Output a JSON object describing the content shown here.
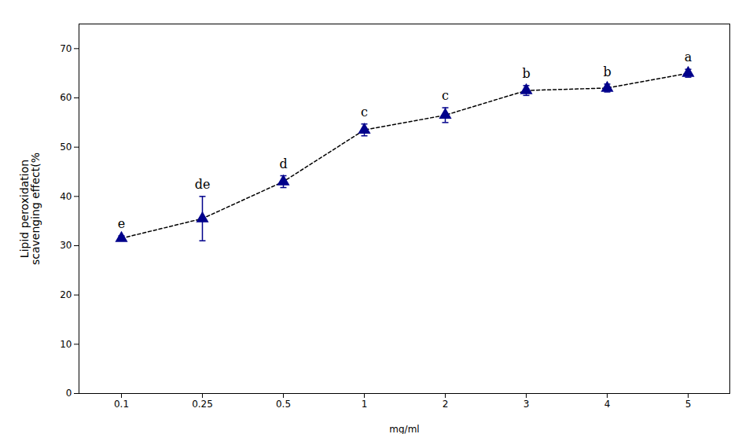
{
  "chart_data": {
    "type": "line",
    "xlabel": "mg/ml",
    "ylabel": "Lipid peroxidation\nscavenging effect(%",
    "categories": [
      "0.1",
      "0.25",
      "0.5",
      "1",
      "2",
      "3",
      "4",
      "5"
    ],
    "values": [
      31.5,
      35.5,
      43.0,
      53.5,
      56.5,
      61.5,
      62.0,
      65.0
    ],
    "errors": [
      0.5,
      4.5,
      1.2,
      1.2,
      1.5,
      1.0,
      0.8,
      0.8
    ],
    "annotations": [
      {
        "category": "0.1",
        "text": "e"
      },
      {
        "category": "0.25",
        "text": "de"
      },
      {
        "category": "0.5",
        "text": "d"
      },
      {
        "category": "1",
        "text": "c"
      },
      {
        "category": "2",
        "text": "c"
      },
      {
        "category": "3",
        "text": "b"
      },
      {
        "category": "4",
        "text": "b"
      },
      {
        "category": "5",
        "text": "a"
      }
    ],
    "color": "#00008B",
    "marker": "triangle",
    "line_style": "dashed",
    "ylim": [
      0,
      75
    ],
    "yticks": [
      0,
      10,
      20,
      30,
      40,
      50,
      60,
      70
    ],
    "grid": false
  }
}
